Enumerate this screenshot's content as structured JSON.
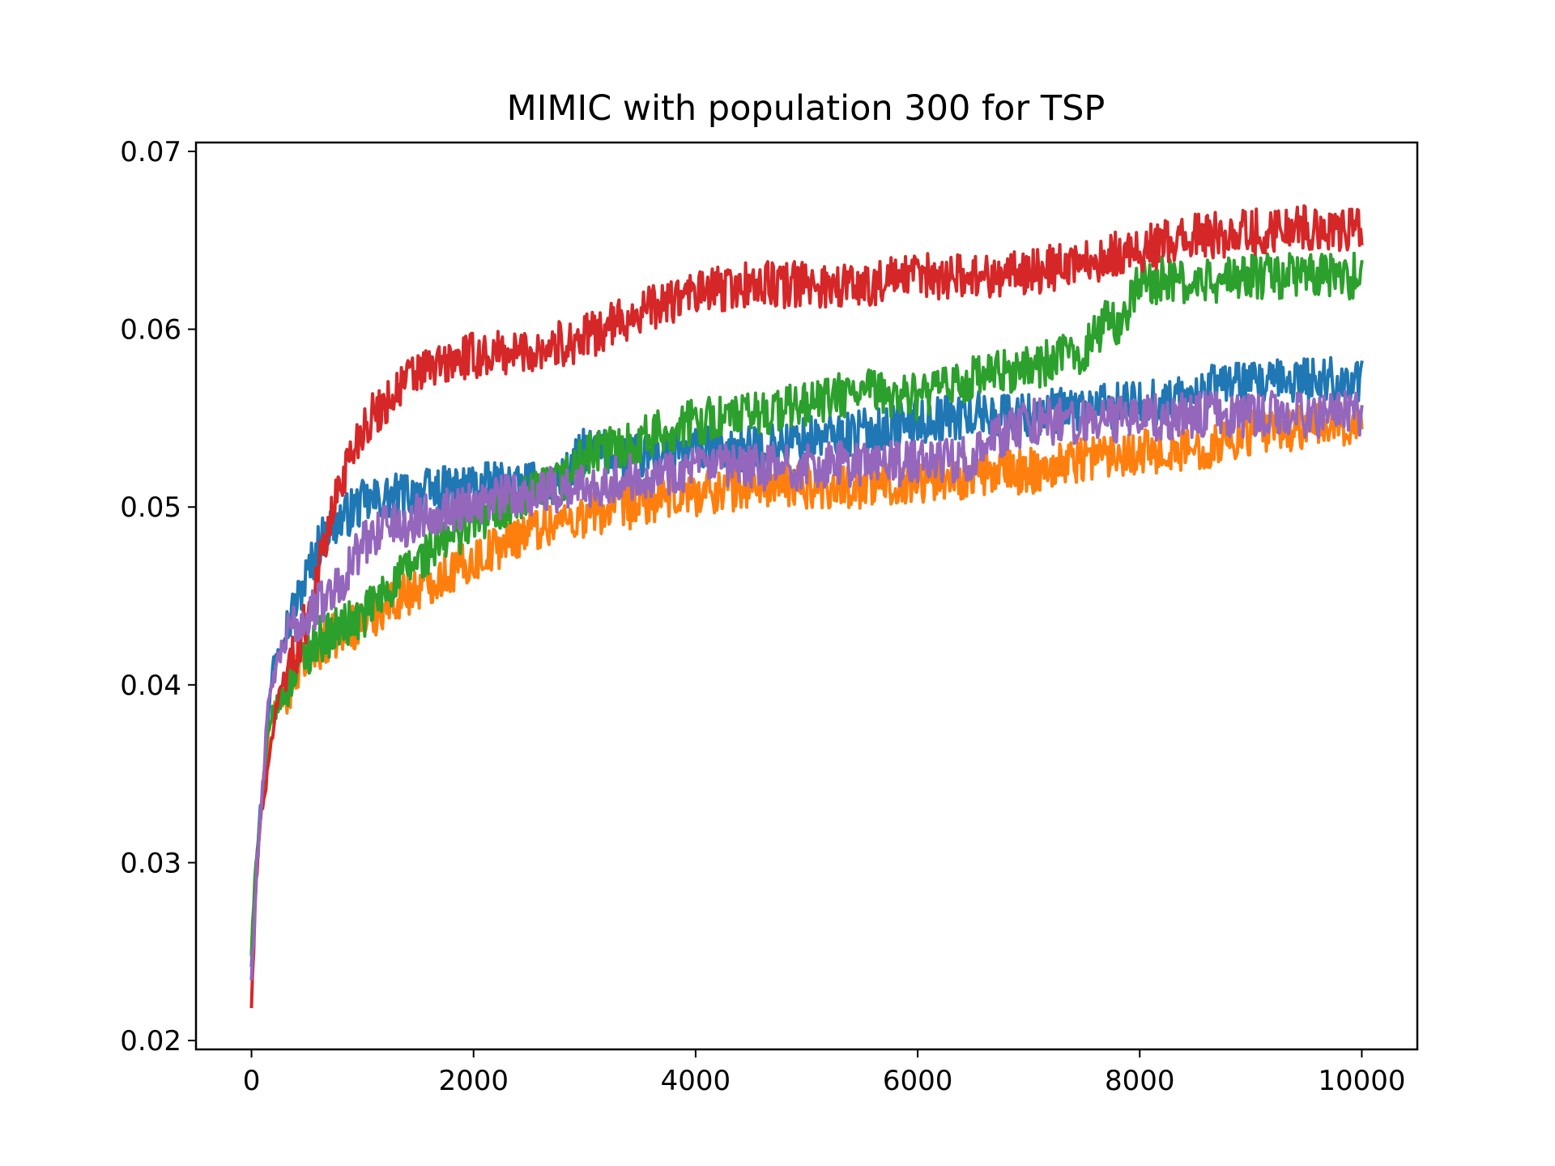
{
  "chart_data": {
    "type": "line",
    "title": "MIMIC with population 300 for TSP",
    "xlabel": "",
    "ylabel": "",
    "xlim": [
      -500,
      10500
    ],
    "ylim": [
      0.0195,
      0.0705
    ],
    "xticks": [
      0,
      2000,
      4000,
      6000,
      8000,
      10000
    ],
    "xtick_labels": [
      "0",
      "2000",
      "4000",
      "6000",
      "8000",
      "10000"
    ],
    "yticks": [
      0.02,
      0.03,
      0.04,
      0.05,
      0.06,
      0.07
    ],
    "ytick_labels": [
      "0.02",
      "0.03",
      "0.04",
      "0.05",
      "0.06",
      "0.07"
    ],
    "grid": false,
    "legend": "none",
    "series": [
      {
        "color": "#1f77b4",
        "x": [
          0,
          50,
          100,
          150,
          200,
          300,
          400,
          500,
          600,
          700,
          800,
          1000,
          1200,
          1500,
          2000,
          2500,
          2800,
          3000,
          3500,
          4000,
          4500,
          5000,
          5500,
          6000,
          6500,
          7000,
          7500,
          8000,
          8500,
          8800,
          9000,
          9500,
          10000
        ],
        "y": [
          0.0245,
          0.031,
          0.034,
          0.038,
          0.0415,
          0.043,
          0.0445,
          0.0462,
          0.0478,
          0.0488,
          0.0493,
          0.0502,
          0.0505,
          0.0508,
          0.0512,
          0.0512,
          0.0515,
          0.0532,
          0.0528,
          0.0532,
          0.0532,
          0.0538,
          0.0542,
          0.0548,
          0.0552,
          0.0552,
          0.0555,
          0.0558,
          0.0562,
          0.0572,
          0.0568,
          0.0572,
          0.057
        ]
      },
      {
        "color": "#ff7f0e",
        "x": [
          0,
          50,
          100,
          150,
          200,
          300,
          400,
          500,
          600,
          800,
          1000,
          1200,
          1500,
          2000,
          2500,
          3000,
          3500,
          4000,
          4500,
          5000,
          5500,
          6000,
          6500,
          7000,
          7500,
          8000,
          8500,
          9000,
          9500,
          10000
        ],
        "y": [
          0.025,
          0.03,
          0.034,
          0.037,
          0.0385,
          0.0395,
          0.0405,
          0.0415,
          0.042,
          0.043,
          0.0435,
          0.0445,
          0.0455,
          0.047,
          0.0488,
          0.0495,
          0.0502,
          0.0508,
          0.0512,
          0.0512,
          0.0512,
          0.0515,
          0.0518,
          0.052,
          0.0528,
          0.0532,
          0.0532,
          0.0542,
          0.0545,
          0.0548
        ]
      },
      {
        "color": "#2ca02c",
        "x": [
          0,
          50,
          100,
          150,
          200,
          300,
          400,
          500,
          600,
          800,
          1000,
          1200,
          1500,
          2000,
          2500,
          2800,
          3000,
          3500,
          4000,
          4500,
          5000,
          5500,
          6000,
          6500,
          7000,
          7500,
          7700,
          7800,
          8000,
          8200,
          8500,
          9000,
          9500,
          10000
        ],
        "y": [
          0.025,
          0.031,
          0.034,
          0.037,
          0.0385,
          0.0395,
          0.041,
          0.0418,
          0.0425,
          0.0432,
          0.0438,
          0.0452,
          0.047,
          0.0492,
          0.0505,
          0.0515,
          0.0528,
          0.0538,
          0.0548,
          0.0552,
          0.0558,
          0.0565,
          0.0562,
          0.0572,
          0.0578,
          0.0588,
          0.0605,
          0.0602,
          0.0625,
          0.0628,
          0.0625,
          0.063,
          0.063,
          0.063
        ]
      },
      {
        "color": "#d62728",
        "x": [
          0,
          50,
          100,
          150,
          200,
          300,
          400,
          500,
          600,
          700,
          800,
          1000,
          1200,
          1400,
          1600,
          2000,
          2500,
          3000,
          3500,
          4000,
          4500,
          5000,
          5500,
          6000,
          6500,
          7000,
          7500,
          8000,
          8500,
          9000,
          9500,
          10000
        ],
        "y": [
          0.022,
          0.03,
          0.0335,
          0.035,
          0.038,
          0.0408,
          0.0418,
          0.0438,
          0.0465,
          0.0488,
          0.0515,
          0.0545,
          0.0558,
          0.0572,
          0.0578,
          0.0585,
          0.0588,
          0.0595,
          0.061,
          0.062,
          0.0625,
          0.0625,
          0.0625,
          0.063,
          0.063,
          0.0632,
          0.0638,
          0.0645,
          0.0652,
          0.0655,
          0.0658,
          0.0655
        ]
      },
      {
        "color": "#9467bd",
        "x": [
          0,
          50,
          100,
          150,
          200,
          300,
          400,
          500,
          600,
          800,
          1000,
          1200,
          1400,
          1500,
          2000,
          2500,
          3000,
          3500,
          4000,
          4500,
          5000,
          5500,
          6000,
          6500,
          6800,
          7000,
          7500,
          8000,
          8500,
          9000,
          9500,
          10000
        ],
        "y": [
          0.0235,
          0.03,
          0.0345,
          0.0385,
          0.0405,
          0.0425,
          0.0435,
          0.0438,
          0.0445,
          0.0458,
          0.0478,
          0.0492,
          0.0488,
          0.0495,
          0.0502,
          0.0508,
          0.0512,
          0.0518,
          0.0522,
          0.0522,
          0.0522,
          0.0525,
          0.0525,
          0.0528,
          0.0542,
          0.0548,
          0.0548,
          0.055,
          0.0552,
          0.0552,
          0.0552,
          0.0552
        ]
      }
    ]
  }
}
